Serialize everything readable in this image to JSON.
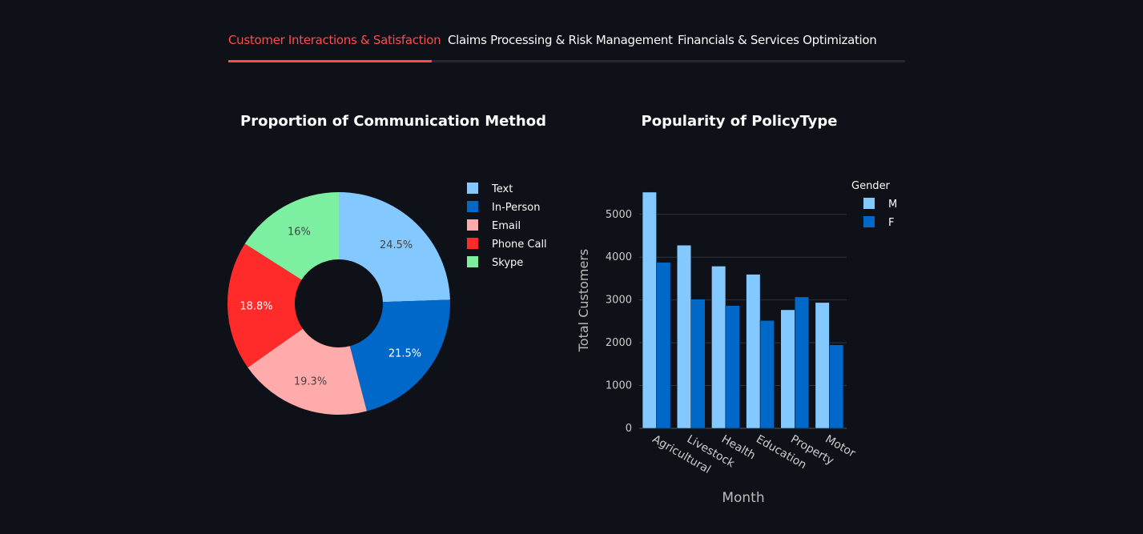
{
  "tabs": [
    {
      "label": "Customer Interactions & Satisfaction",
      "active": true
    },
    {
      "label": "Claims Processing & Risk Management",
      "active": false
    },
    {
      "label": "Financials & Services Optimization",
      "active": false
    }
  ],
  "colors": {
    "accent": "#ff4b4b",
    "background": "#0e1117"
  },
  "chart_data": [
    {
      "type": "pie",
      "title": "Proportion of Communication Method",
      "hole": true,
      "labels": [
        "Text",
        "In-Person",
        "Email",
        "Phone Call",
        "Skype"
      ],
      "values": [
        24.5,
        21.5,
        19.3,
        18.8,
        16
      ],
      "slice_labels": [
        "24.5%",
        "21.5%",
        "19.3%",
        "18.8%",
        "16%"
      ],
      "colors": [
        "#83c9ff",
        "#0068c9",
        "#ffabab",
        "#ff2b2b",
        "#7defa1"
      ],
      "label_colors": [
        "#444444",
        "#ffffff",
        "#444444",
        "#ffffff",
        "#444444"
      ],
      "legend_position": "right"
    },
    {
      "type": "bar",
      "title": "Popularity of PolicyType",
      "categories": [
        "Agricultural",
        "Livestock",
        "Health",
        "Education",
        "Property",
        "Motor"
      ],
      "series": [
        {
          "name": "M",
          "color": "#83c9ff",
          "values": [
            5520,
            4280,
            3790,
            3600,
            2770,
            2940
          ]
        },
        {
          "name": "F",
          "color": "#0068c9",
          "values": [
            3880,
            3020,
            2870,
            2520,
            3070,
            1950
          ]
        }
      ],
      "xlabel": "Month",
      "ylabel": "Total Customers",
      "yticks": [
        0,
        1000,
        2000,
        3000,
        4000,
        5000
      ],
      "ylim": [
        0,
        5800
      ],
      "legend_title": "Gender",
      "legend_position": "top-right",
      "grid": true
    }
  ]
}
